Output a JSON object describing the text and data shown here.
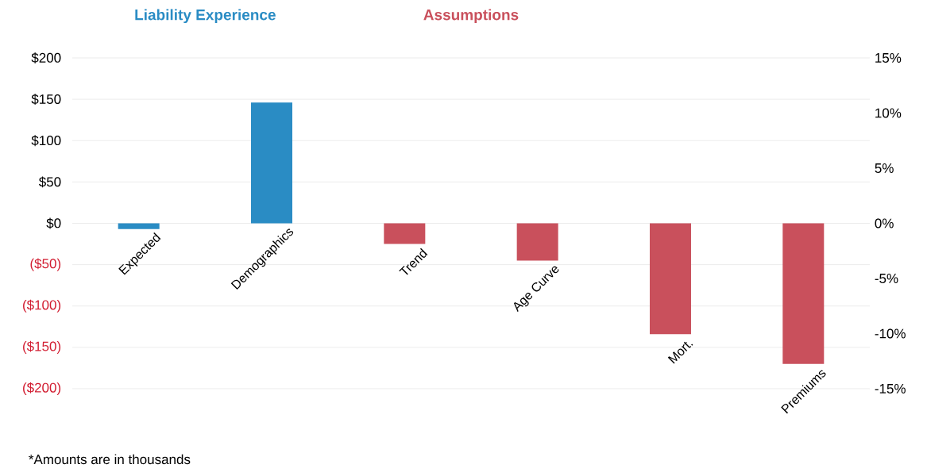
{
  "chart_data": {
    "type": "bar",
    "categories": [
      "Expected",
      "Demographics",
      "Trend",
      "Age Curve",
      "Mort.",
      "Premiums"
    ],
    "series": [
      {
        "name": "Liability Experience",
        "color": "#2a8cc4",
        "values": [
          -7,
          146,
          null,
          null,
          null,
          null
        ]
      },
      {
        "name": "Assumptions",
        "color": "#c9505c",
        "values": [
          null,
          null,
          -25,
          -45,
          -134,
          -170
        ]
      }
    ],
    "ylim": [
      -200,
      200
    ],
    "yticks": [
      {
        "value": 200,
        "label": "$200"
      },
      {
        "value": 150,
        "label": "$150"
      },
      {
        "value": 100,
        "label": "$100"
      },
      {
        "value": 50,
        "label": "$50"
      },
      {
        "value": 0,
        "label": "$0"
      },
      {
        "value": -50,
        "label": "($50)"
      },
      {
        "value": -100,
        "label": "($100)"
      },
      {
        "value": -150,
        "label": "($150)"
      },
      {
        "value": -200,
        "label": "($200)"
      }
    ],
    "y2lim": [
      -15,
      15
    ],
    "y2ticks": [
      {
        "value": 15,
        "label": "15%"
      },
      {
        "value": 10,
        "label": "10%"
      },
      {
        "value": 5,
        "label": "5%"
      },
      {
        "value": 0,
        "label": "0%"
      },
      {
        "value": -5,
        "label": "-5%"
      },
      {
        "value": -10,
        "label": "-10%"
      },
      {
        "value": -15,
        "label": "-15%"
      }
    ],
    "grid": "y",
    "annotations": [
      "*Amounts are in thousands"
    ]
  }
}
